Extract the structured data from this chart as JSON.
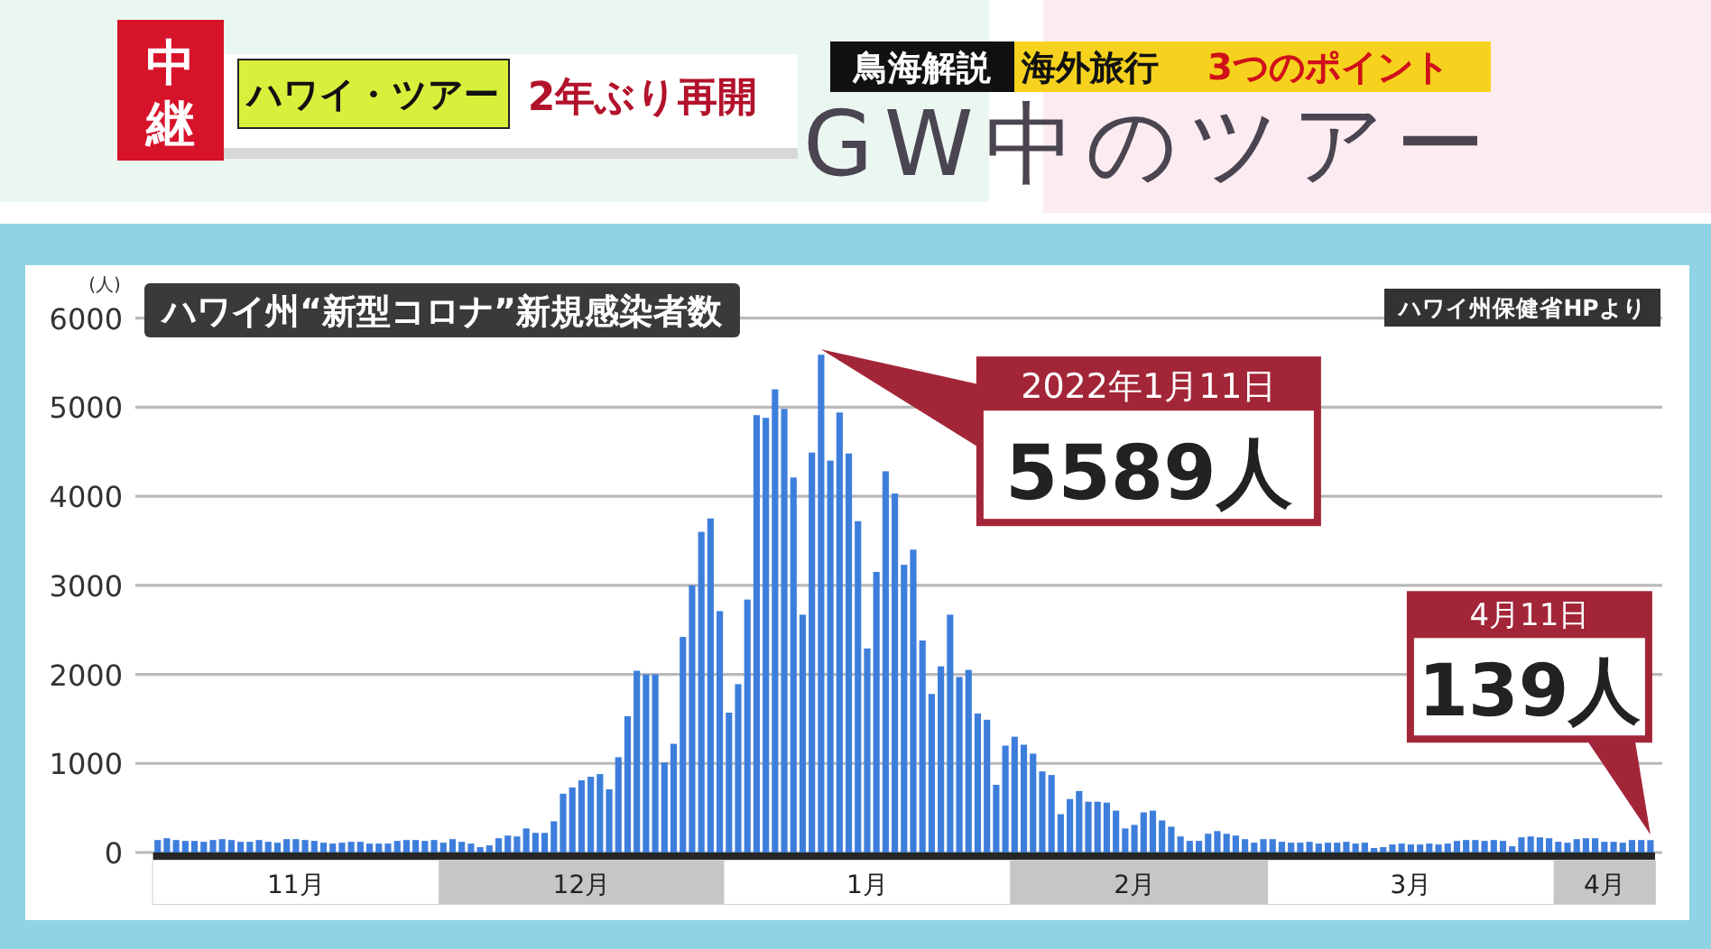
{
  "chart_data": {
    "type": "bar",
    "title": "ハワイ州“新型コロナ”新規感染者数",
    "ylabel": "(人)",
    "color": "#3d7edc",
    "x": [
      "2021-10-31",
      "2021-11-01",
      "2021-11-02",
      "2021-11-03",
      "2021-11-04",
      "2021-11-05",
      "2021-11-06",
      "2021-11-07",
      "2021-11-08",
      "2021-11-09",
      "2021-11-10",
      "2021-11-11",
      "2021-11-12",
      "2021-11-13",
      "2021-11-14",
      "2021-11-15",
      "2021-11-16",
      "2021-11-17",
      "2021-11-18",
      "2021-11-19",
      "2021-11-20",
      "2021-11-21",
      "2021-11-22",
      "2021-11-23",
      "2021-11-24",
      "2021-11-25",
      "2021-11-26",
      "2021-11-27",
      "2021-11-28",
      "2021-11-29",
      "2021-11-30",
      "2021-12-01",
      "2021-12-02",
      "2021-12-03",
      "2021-12-04",
      "2021-12-05",
      "2021-12-06",
      "2021-12-07",
      "2021-12-08",
      "2021-12-09",
      "2021-12-10",
      "2021-12-11",
      "2021-12-12",
      "2021-12-13",
      "2021-12-14",
      "2021-12-15",
      "2021-12-16",
      "2021-12-17",
      "2021-12-18",
      "2021-12-19",
      "2021-12-20",
      "2021-12-21",
      "2021-12-22",
      "2021-12-23",
      "2021-12-24",
      "2021-12-25",
      "2021-12-26",
      "2021-12-27",
      "2021-12-28",
      "2021-12-29",
      "2021-12-30",
      "2021-12-31",
      "2022-01-01",
      "2022-01-02",
      "2022-01-03",
      "2022-01-04",
      "2022-01-05",
      "2022-01-06",
      "2022-01-07",
      "2022-01-08",
      "2022-01-09",
      "2022-01-10",
      "2022-01-11",
      "2022-01-12",
      "2022-01-13",
      "2022-01-14",
      "2022-01-15",
      "2022-01-16",
      "2022-01-17",
      "2022-01-18",
      "2022-01-19",
      "2022-01-20",
      "2022-01-21",
      "2022-01-22",
      "2022-01-23",
      "2022-01-24",
      "2022-01-25",
      "2022-01-26",
      "2022-01-27",
      "2022-01-28",
      "2022-01-29",
      "2022-01-30",
      "2022-01-31",
      "2022-02-01",
      "2022-02-02",
      "2022-02-03",
      "2022-02-04",
      "2022-02-05",
      "2022-02-06",
      "2022-02-07",
      "2022-02-08",
      "2022-02-09",
      "2022-02-10",
      "2022-02-11",
      "2022-02-12",
      "2022-02-13",
      "2022-02-14",
      "2022-02-15",
      "2022-02-16",
      "2022-02-17",
      "2022-02-18",
      "2022-02-19",
      "2022-02-20",
      "2022-02-21",
      "2022-02-22",
      "2022-02-23",
      "2022-02-24",
      "2022-02-25",
      "2022-02-26",
      "2022-02-27",
      "2022-02-28",
      "2022-03-01",
      "2022-03-02",
      "2022-03-03",
      "2022-03-04",
      "2022-03-05",
      "2022-03-06",
      "2022-03-07",
      "2022-03-08",
      "2022-03-09",
      "2022-03-10",
      "2022-03-11",
      "2022-03-12",
      "2022-03-13",
      "2022-03-14",
      "2022-03-15",
      "2022-03-16",
      "2022-03-17",
      "2022-03-18",
      "2022-03-19",
      "2022-03-20",
      "2022-03-21",
      "2022-03-22",
      "2022-03-23",
      "2022-03-24",
      "2022-03-25",
      "2022-03-26",
      "2022-03-27",
      "2022-03-28",
      "2022-03-29",
      "2022-03-30",
      "2022-03-31",
      "2022-04-01",
      "2022-04-02",
      "2022-04-03",
      "2022-04-04",
      "2022-04-05",
      "2022-04-06",
      "2022-04-07",
      "2022-04-08",
      "2022-04-09",
      "2022-04-10",
      "2022-04-11"
    ],
    "values": [
      140,
      160,
      140,
      130,
      130,
      120,
      140,
      150,
      140,
      120,
      120,
      140,
      120,
      110,
      150,
      150,
      140,
      130,
      110,
      100,
      110,
      120,
      120,
      100,
      100,
      100,
      130,
      140,
      140,
      130,
      140,
      110,
      150,
      120,
      100,
      60,
      80,
      160,
      190,
      180,
      270,
      220,
      220,
      350,
      660,
      730,
      810,
      850,
      880,
      710,
      1070,
      1530,
      2040,
      2000,
      2000,
      1010,
      1220,
      2420,
      3000,
      3600,
      3750,
      2710,
      1570,
      1890,
      2840,
      4910,
      4880,
      5200,
      4980,
      4210,
      2670,
      4490,
      5589,
      4400,
      4940,
      4480,
      3720,
      2290,
      3150,
      4280,
      4030,
      3230,
      3400,
      2380,
      1780,
      2090,
      2670,
      1970,
      2050,
      1560,
      1490,
      760,
      1200,
      1300,
      1210,
      1110,
      910,
      870,
      430,
      600,
      690,
      570,
      570,
      560,
      470,
      270,
      310,
      450,
      470,
      360,
      290,
      180,
      130,
      130,
      210,
      240,
      210,
      190,
      150,
      110,
      150,
      150,
      120,
      110,
      110,
      120,
      100,
      110,
      110,
      120,
      100,
      110,
      50,
      60,
      90,
      100,
      90,
      90,
      100,
      90,
      100,
      130,
      140,
      140,
      130,
      140,
      130,
      70,
      170,
      180,
      170,
      160,
      120,
      110,
      150,
      160,
      160,
      120,
      120,
      110,
      140,
      140,
      139
    ],
    "xlim": [
      "2021-10-30T12:00",
      "2022-04-11T12:00"
    ],
    "xticks": [
      {
        "value": "2021-11-15",
        "label": "11月"
      },
      {
        "value": "2021-12-16",
        "label": "12月"
      },
      {
        "value": "2022-01-16",
        "label": "1月"
      },
      {
        "value": "2022-02-14",
        "label": "2月"
      },
      {
        "value": "2022-03-16",
        "label": "3月"
      },
      {
        "value": "2022-04-06",
        "label": "4月"
      }
    ],
    "ylim": [
      0,
      6000
    ],
    "yticks": [
      0,
      1000,
      2000,
      3000,
      4000,
      5000,
      6000
    ],
    "grid": "y",
    "annotations": [
      {
        "text": "2022年1月11日\n5589人",
        "x": "2022-01-11",
        "y": 5589
      },
      {
        "text": "4月11日\n139人",
        "x": "2022-04-11",
        "y": 139
      },
      "中継",
      "ハワイ・ツアー",
      "2年ぶり再開",
      "鳥海解説",
      "海外旅行",
      "3つのポイント",
      "GW中のツアー",
      "ハワイ州保健省HPより"
    ]
  }
}
